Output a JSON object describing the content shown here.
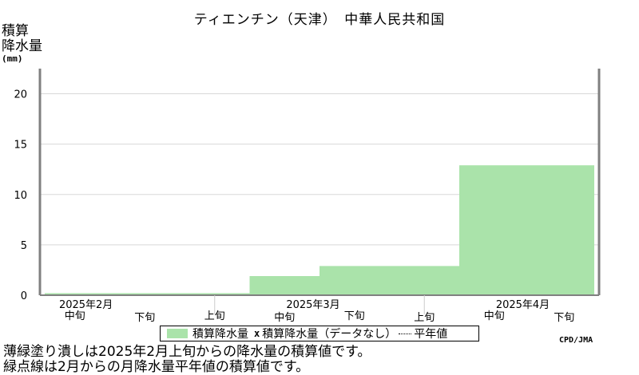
{
  "title": "ティエンチン（天津）　中華人民共和国",
  "ylabel_line1": "積算",
  "ylabel_line2": "降水量",
  "yunit": "(mm)",
  "legend": {
    "bar_label": "積算降水量",
    "x_marker": "x",
    "missing_label": "積算降水量（データなし）",
    "normal_label": "平年値"
  },
  "credit": "CPD/JMA",
  "notes": [
    "薄緑塗り潰しは2025年2月上旬からの降水量の積算値です。",
    "緑点線は2月からの月降水量平年値の積算値です。"
  ],
  "colors": {
    "bar": "#aae3aa",
    "grid": "#d8d8d8",
    "axis": "#808080"
  },
  "chart_data": {
    "type": "area",
    "xlabels_dekad": [
      "中旬",
      "下旬",
      "上旬",
      "中旬",
      "下旬",
      "上旬",
      "中旬",
      "下旬"
    ],
    "xlabels_month": [
      "2025年2月",
      "2025年3月",
      "2025年4月"
    ],
    "periods": [
      "2月中旬",
      "2月下旬",
      "3月上旬",
      "3月中旬",
      "3月下旬",
      "4月上旬",
      "4月中旬",
      "4月下旬"
    ],
    "series": [
      {
        "name": "積算降水量",
        "values": [
          0.2,
          0.2,
          0.2,
          1.9,
          2.9,
          2.9,
          12.9,
          12.9
        ]
      }
    ],
    "yticks": [
      0,
      5,
      10,
      15,
      20
    ],
    "ylim": [
      0,
      22.5
    ],
    "grid": true
  }
}
